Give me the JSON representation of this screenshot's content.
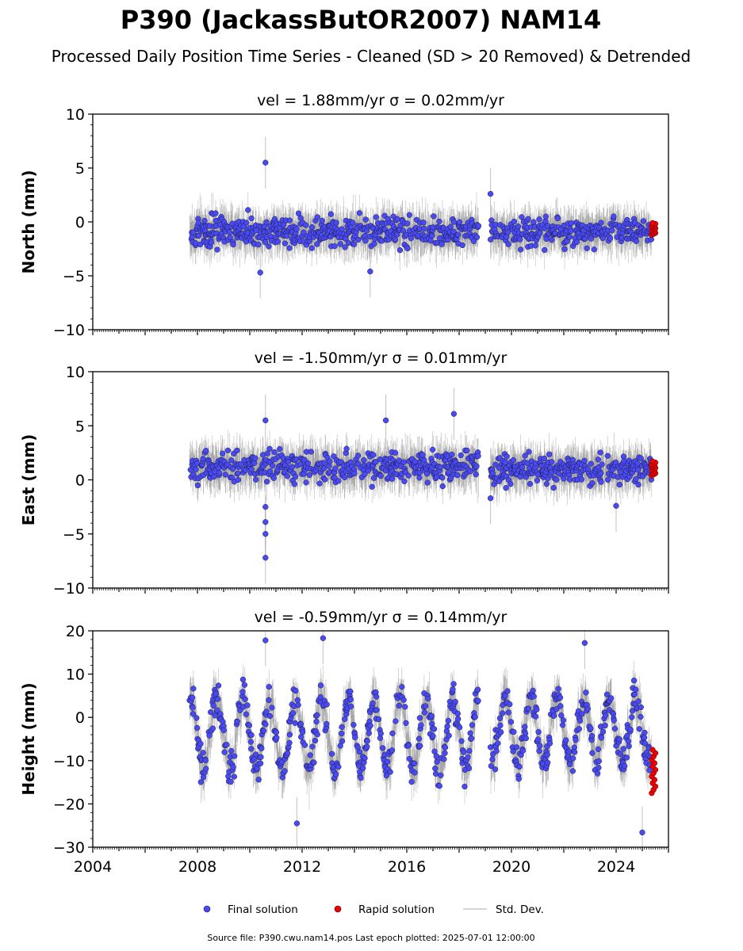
{
  "title": "P390 (JackassButOR2007) NAM14",
  "subtitle": "Processed Daily Position Time Series - Cleaned (SD > 20 Removed) & Detrended",
  "footer": "Source file: P390.cwu.nam14.pos  Last epoch plotted: 2025-07-01 12:00:00",
  "colors": {
    "final": "#4a4af5",
    "final_edge": "#1a1a40",
    "rapid": "#ee0000",
    "stddev": "#bdbdbd"
  },
  "legend": {
    "placement": "bottom-center",
    "items": [
      {
        "label": "Final solution",
        "symbol": "dot",
        "color": "#4a4af5"
      },
      {
        "label": "Rapid solution",
        "symbol": "dot",
        "color": "#ee0000"
      },
      {
        "label": "Std. Dev.",
        "symbol": "line",
        "color": "#bdbdbd"
      }
    ]
  },
  "chart_data": [
    {
      "type": "scatter",
      "ylabel": "North (mm)",
      "vel_text": "vel = 1.88mm/yr   σ = 0.02mm/yr",
      "ylim": [
        -10,
        10
      ],
      "yticks": [
        -10,
        -5,
        0,
        5,
        10
      ],
      "xlim": [
        2004,
        2026
      ],
      "xticks": [
        2004,
        2008,
        2012,
        2016,
        2020,
        2024
      ],
      "show_xtick_labels": false,
      "grid": false,
      "series": [
        {
          "role": "final",
          "segments": [
            {
              "x_range": [
                2007.7,
                2018.75
              ],
              "center": -0.9,
              "spread": 1.4
            },
            {
              "x_range": [
                2019.2,
                2025.35
              ],
              "center": -0.9,
              "spread": 1.3
            }
          ],
          "outliers": [
            [
              2010.6,
              5.5
            ],
            [
              2019.2,
              2.6
            ],
            [
              2010.4,
              -4.7
            ],
            [
              2014.6,
              -4.6
            ]
          ]
        },
        {
          "role": "rapid",
          "x_range": [
            2025.36,
            2025.5
          ],
          "values_range": [
            -1.2,
            -0.1
          ]
        }
      ]
    },
    {
      "type": "scatter",
      "ylabel": "East (mm)",
      "vel_text": "vel = -1.50mm/yr   σ = 0.01mm/yr",
      "ylim": [
        -10,
        10
      ],
      "yticks": [
        -10,
        -5,
        0,
        5,
        10
      ],
      "xlim": [
        2004,
        2026
      ],
      "xticks": [
        2004,
        2008,
        2012,
        2016,
        2020,
        2024
      ],
      "show_xtick_labels": false,
      "grid": false,
      "series": [
        {
          "role": "final",
          "segments": [
            {
              "x_range": [
                2007.7,
                2018.75
              ],
              "center": 1.2,
              "spread": 1.4
            },
            {
              "x_range": [
                2019.2,
                2025.35
              ],
              "center": 1.0,
              "spread": 1.3
            }
          ],
          "outliers": [
            [
              2010.6,
              5.5
            ],
            [
              2010.6,
              -2.5
            ],
            [
              2010.6,
              -3.9
            ],
            [
              2010.6,
              -5.0
            ],
            [
              2010.6,
              -7.2
            ],
            [
              2017.8,
              6.1
            ],
            [
              2015.2,
              5.5
            ],
            [
              2024.0,
              -2.4
            ],
            [
              2019.2,
              -1.7
            ]
          ]
        },
        {
          "role": "rapid",
          "x_range": [
            2025.36,
            2025.5
          ],
          "values_range": [
            0.4,
            1.7
          ]
        }
      ]
    },
    {
      "type": "scatter",
      "ylabel": "Height (mm)",
      "vel_text": "vel = -0.59mm/yr   σ = 0.14mm/yr",
      "ylim": [
        -30,
        20
      ],
      "yticks": [
        -30,
        -20,
        -10,
        0,
        10,
        20
      ],
      "xlim": [
        2004,
        2026
      ],
      "xticks": [
        2004,
        2008,
        2012,
        2016,
        2020,
        2024
      ],
      "show_xtick_labels": true,
      "grid": false,
      "series": [
        {
          "role": "final",
          "segments": [
            {
              "x_range": [
                2007.7,
                2018.75
              ],
              "center": -4.0,
              "amplitude": 8.0,
              "spread": 4.0
            },
            {
              "x_range": [
                2019.2,
                2025.35
              ],
              "center": -3.0,
              "amplitude": 7.0,
              "spread": 4.0
            }
          ],
          "outliers": [
            [
              2010.6,
              17.8
            ],
            [
              2012.8,
              18.3
            ],
            [
              2022.8,
              17.2
            ],
            [
              2011.8,
              -24.5
            ],
            [
              2025.0,
              -26.6
            ]
          ]
        },
        {
          "role": "rapid",
          "x_range": [
            2025.36,
            2025.5
          ],
          "values_range": [
            -17.5,
            -7.5
          ]
        }
      ]
    }
  ]
}
